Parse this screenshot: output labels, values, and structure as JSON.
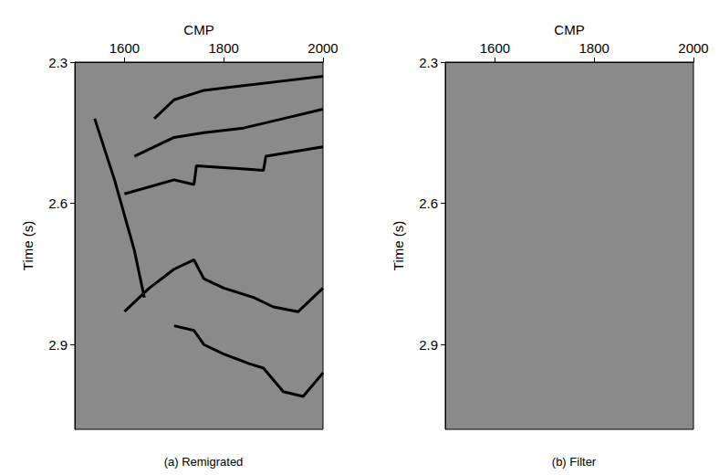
{
  "chart_data": [
    {
      "type": "line",
      "caption": "(a) Remigrated",
      "x_label": "CMP",
      "y_label": "Time (s)",
      "xlim": [
        1500,
        2000
      ],
      "ylim": [
        2.3,
        3.08
      ],
      "xticks": [
        1600,
        1800,
        2000
      ],
      "yticks": [
        2.3,
        2.6,
        2.9
      ],
      "color": "#000000",
      "series": [
        {
          "x": [
            1660,
            1700,
            1760,
            1840,
            1920,
            2000
          ],
          "values": [
            2.42,
            2.38,
            2.36,
            2.35,
            2.34,
            2.33
          ]
        },
        {
          "x": [
            1620,
            1700,
            1760,
            1840,
            1920,
            2000
          ],
          "values": [
            2.5,
            2.46,
            2.45,
            2.44,
            2.42,
            2.4
          ]
        },
        {
          "x": [
            1600,
            1700,
            1740,
            1745,
            1880,
            1885,
            2000
          ],
          "values": [
            2.58,
            2.55,
            2.56,
            2.52,
            2.53,
            2.5,
            2.48
          ]
        },
        {
          "x": [
            1540,
            1580,
            1620,
            1640
          ],
          "values": [
            2.42,
            2.55,
            2.7,
            2.8
          ]
        },
        {
          "x": [
            1600,
            1650,
            1700,
            1740,
            1760,
            1800,
            1860,
            1900,
            1950,
            2000
          ],
          "values": [
            2.83,
            2.78,
            2.74,
            2.72,
            2.76,
            2.78,
            2.8,
            2.82,
            2.83,
            2.78
          ]
        },
        {
          "x": [
            1700,
            1740,
            1760,
            1800,
            1850,
            1880,
            1920,
            1960,
            2000
          ],
          "values": [
            2.86,
            2.87,
            2.9,
            2.92,
            2.94,
            2.95,
            3.0,
            3.01,
            2.96
          ]
        }
      ]
    },
    {
      "type": "line",
      "caption": "(b) Filter",
      "x_label": "CMP",
      "y_label": "Time (s)",
      "xlim": [
        1500,
        2000
      ],
      "ylim": [
        2.3,
        3.08
      ],
      "xticks": [
        1600,
        1800,
        2000
      ],
      "yticks": [
        2.3,
        2.6,
        2.9
      ],
      "color": "#000000",
      "series": []
    }
  ]
}
